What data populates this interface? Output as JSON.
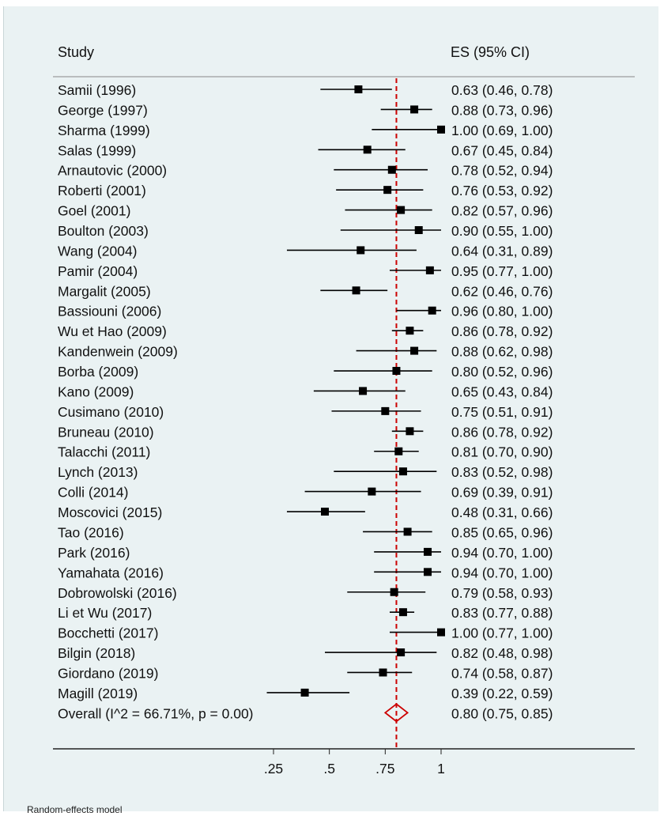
{
  "chart_data": {
    "type": "forest",
    "headers": {
      "study": "Study",
      "es": "ES (95% CI)"
    },
    "x_ticks": [
      {
        "value": 0.25,
        "label": ".25"
      },
      {
        "value": 0.5,
        "label": ".5"
      },
      {
        "value": 0.75,
        "label": ".75"
      },
      {
        "value": 1.0,
        "label": "1"
      }
    ],
    "xlim": [
      0,
      1
    ],
    "overall_line": 0.8,
    "colors": {
      "marker": "#000000",
      "overall_line": "#cc0000",
      "diamond": "#cc0000",
      "background": "#eaf2f3"
    },
    "studies": [
      {
        "label": "Samii (1996)",
        "es": 0.63,
        "lo": 0.46,
        "hi": 0.78,
        "text": "0.63 (0.46, 0.78)"
      },
      {
        "label": "George (1997)",
        "es": 0.88,
        "lo": 0.73,
        "hi": 0.96,
        "text": "0.88 (0.73, 0.96)"
      },
      {
        "label": "Sharma (1999)",
        "es": 1.0,
        "lo": 0.69,
        "hi": 1.0,
        "text": "1.00 (0.69, 1.00)"
      },
      {
        "label": "Salas (1999)",
        "es": 0.67,
        "lo": 0.45,
        "hi": 0.84,
        "text": "0.67 (0.45, 0.84)"
      },
      {
        "label": "Arnautovic (2000)",
        "es": 0.78,
        "lo": 0.52,
        "hi": 0.94,
        "text": "0.78 (0.52, 0.94)"
      },
      {
        "label": "Roberti (2001)",
        "es": 0.76,
        "lo": 0.53,
        "hi": 0.92,
        "text": "0.76 (0.53, 0.92)"
      },
      {
        "label": "Goel (2001)",
        "es": 0.82,
        "lo": 0.57,
        "hi": 0.96,
        "text": "0.82 (0.57, 0.96)"
      },
      {
        "label": "Boulton (2003)",
        "es": 0.9,
        "lo": 0.55,
        "hi": 1.0,
        "text": "0.90 (0.55, 1.00)"
      },
      {
        "label": "Wang (2004)",
        "es": 0.64,
        "lo": 0.31,
        "hi": 0.89,
        "text": "0.64 (0.31, 0.89)"
      },
      {
        "label": "Pamir (2004)",
        "es": 0.95,
        "lo": 0.77,
        "hi": 1.0,
        "text": "0.95 (0.77, 1.00)"
      },
      {
        "label": "Margalit (2005)",
        "es": 0.62,
        "lo": 0.46,
        "hi": 0.76,
        "text": "0.62 (0.46, 0.76)"
      },
      {
        "label": "Bassiouni (2006)",
        "es": 0.96,
        "lo": 0.8,
        "hi": 1.0,
        "text": "0.96 (0.80, 1.00)"
      },
      {
        "label": "Wu et Hao (2009)",
        "es": 0.86,
        "lo": 0.78,
        "hi": 0.92,
        "text": "0.86 (0.78, 0.92)"
      },
      {
        "label": "Kandenwein (2009)",
        "es": 0.88,
        "lo": 0.62,
        "hi": 0.98,
        "text": "0.88 (0.62, 0.98)"
      },
      {
        "label": "Borba (2009)",
        "es": 0.8,
        "lo": 0.52,
        "hi": 0.96,
        "text": "0.80 (0.52, 0.96)"
      },
      {
        "label": "Kano (2009)",
        "es": 0.65,
        "lo": 0.43,
        "hi": 0.84,
        "text": "0.65 (0.43, 0.84)"
      },
      {
        "label": "Cusimano (2010)",
        "es": 0.75,
        "lo": 0.51,
        "hi": 0.91,
        "text": "0.75 (0.51, 0.91)"
      },
      {
        "label": "Bruneau (2010)",
        "es": 0.86,
        "lo": 0.78,
        "hi": 0.92,
        "text": "0.86 (0.78, 0.92)"
      },
      {
        "label": "Talacchi (2011)",
        "es": 0.81,
        "lo": 0.7,
        "hi": 0.9,
        "text": "0.81 (0.70, 0.90)"
      },
      {
        "label": "Lynch (2013)",
        "es": 0.83,
        "lo": 0.52,
        "hi": 0.98,
        "text": "0.83 (0.52, 0.98)"
      },
      {
        "label": "Colli (2014)",
        "es": 0.69,
        "lo": 0.39,
        "hi": 0.91,
        "text": "0.69 (0.39, 0.91)"
      },
      {
        "label": "Moscovici (2015)",
        "es": 0.48,
        "lo": 0.31,
        "hi": 0.66,
        "text": "0.48 (0.31, 0.66)"
      },
      {
        "label": "Tao (2016)",
        "es": 0.85,
        "lo": 0.65,
        "hi": 0.96,
        "text": "0.85 (0.65, 0.96)"
      },
      {
        "label": "Park (2016)",
        "es": 0.94,
        "lo": 0.7,
        "hi": 1.0,
        "text": "0.94 (0.70, 1.00)"
      },
      {
        "label": "Yamahata (2016)",
        "es": 0.94,
        "lo": 0.7,
        "hi": 1.0,
        "text": "0.94 (0.70, 1.00)"
      },
      {
        "label": "Dobrowolski (2016)",
        "es": 0.79,
        "lo": 0.58,
        "hi": 0.93,
        "text": "0.79 (0.58, 0.93)"
      },
      {
        "label": "Li et Wu (2017)",
        "es": 0.83,
        "lo": 0.77,
        "hi": 0.88,
        "text": "0.83 (0.77, 0.88)"
      },
      {
        "label": "Bocchetti (2017)",
        "es": 1.0,
        "lo": 0.77,
        "hi": 1.0,
        "text": "1.00 (0.77, 1.00)"
      },
      {
        "label": "Bilgin (2018)",
        "es": 0.82,
        "lo": 0.48,
        "hi": 0.98,
        "text": "0.82 (0.48, 0.98)"
      },
      {
        "label": "Giordano (2019)",
        "es": 0.74,
        "lo": 0.58,
        "hi": 0.87,
        "text": "0.74 (0.58, 0.87)"
      },
      {
        "label": "Magill (2019)",
        "es": 0.39,
        "lo": 0.22,
        "hi": 0.59,
        "text": "0.39 (0.22, 0.59)"
      }
    ],
    "overall": {
      "label": "Overall  (I^2 = 66.71%, p = 0.00)",
      "es": 0.8,
      "lo": 0.75,
      "hi": 0.85,
      "text": "0.80 (0.75, 0.85)"
    }
  },
  "footnote": "Random-effects model"
}
